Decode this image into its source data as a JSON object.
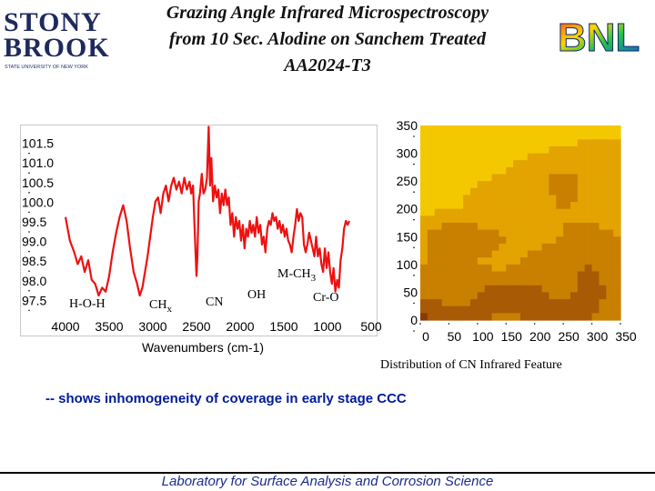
{
  "logo_left": {
    "line1": "STONY",
    "line2": "BROOK",
    "subtitle": "STATE UNIVERSITY OF NEW YORK"
  },
  "logo_right": {
    "text": "BNL"
  },
  "title": {
    "line1": "Grazing Angle Infrared Microspectroscopy",
    "line2": "from 10 Sec. Alodine on Sanchem Treated",
    "line3": "AA2024-T3"
  },
  "chart_data": [
    {
      "type": "line",
      "title": "",
      "xlabel": "Wavenumbers (cm-1)",
      "ylabel": "",
      "xlim": [
        4000,
        500
      ],
      "ylim": [
        97.3,
        101.7
      ],
      "xticks": [
        "4000",
        "3500",
        "3000",
        "2500",
        "2000",
        "1500",
        "1000",
        "500"
      ],
      "yticks": [
        "101.5",
        "101.0",
        "100.5",
        "100.0",
        "99.5",
        "99.0",
        "98.5",
        "98.0",
        "97.5"
      ],
      "grid": false,
      "series": [
        {
          "color": "#ee1111",
          "points": [
            [
              4000,
              99.6
            ],
            [
              3950,
              99.0
            ],
            [
              3900,
              98.7
            ],
            [
              3860,
              98.4
            ],
            [
              3820,
              98.6
            ],
            [
              3780,
              98.2
            ],
            [
              3740,
              98.5
            ],
            [
              3700,
              98.0
            ],
            [
              3660,
              97.9
            ],
            [
              3620,
              97.6
            ],
            [
              3580,
              97.8
            ],
            [
              3540,
              97.7
            ],
            [
              3500,
              98.1
            ],
            [
              3460,
              98.7
            ],
            [
              3420,
              99.2
            ],
            [
              3380,
              99.6
            ],
            [
              3340,
              99.9
            ],
            [
              3300,
              99.5
            ],
            [
              3260,
              98.8
            ],
            [
              3220,
              98.2
            ],
            [
              3180,
              97.9
            ],
            [
              3150,
              97.6
            ],
            [
              3120,
              97.8
            ],
            [
              3090,
              98.2
            ],
            [
              3060,
              98.6
            ],
            [
              3030,
              99.1
            ],
            [
              3000,
              99.6
            ],
            [
              2970,
              100.0
            ],
            [
              2940,
              100.1
            ],
            [
              2910,
              99.7
            ],
            [
              2880,
              100.2
            ],
            [
              2850,
              100.4
            ],
            [
              2820,
              100.0
            ],
            [
              2790,
              100.4
            ],
            [
              2760,
              100.6
            ],
            [
              2730,
              100.3
            ],
            [
              2700,
              100.5
            ],
            [
              2670,
              100.2
            ],
            [
              2640,
              100.6
            ],
            [
              2610,
              100.3
            ],
            [
              2580,
              100.5
            ],
            [
              2560,
              100.2
            ],
            [
              2540,
              100.4
            ],
            [
              2520,
              99.2
            ],
            [
              2500,
              98.1
            ],
            [
              2490,
              98.6
            ],
            [
              2475,
              100.0
            ],
            [
              2460,
              100.2
            ],
            [
              2440,
              100.7
            ],
            [
              2420,
              100.2
            ],
            [
              2400,
              100.3
            ],
            [
              2380,
              100.6
            ],
            [
              2360,
              101.9
            ],
            [
              2345,
              100.4
            ],
            [
              2330,
              101.1
            ],
            [
              2310,
              100.0
            ],
            [
              2290,
              100.4
            ],
            [
              2270,
              100.1
            ],
            [
              2250,
              100.3
            ],
            [
              2230,
              99.7
            ],
            [
              2210,
              100.2
            ],
            [
              2190,
              99.9
            ],
            [
              2170,
              100.3
            ],
            [
              2150,
              99.9
            ],
            [
              2130,
              100.1
            ],
            [
              2110,
              99.4
            ],
            [
              2090,
              99.7
            ],
            [
              2070,
              99.1
            ],
            [
              2050,
              99.6
            ],
            [
              2030,
              99.3
            ],
            [
              2010,
              99.5
            ],
            [
              1990,
              99.0
            ],
            [
              1970,
              99.4
            ],
            [
              1950,
              98.8
            ],
            [
              1930,
              99.3
            ],
            [
              1910,
              99.1
            ],
            [
              1890,
              99.5
            ],
            [
              1870,
              99.2
            ],
            [
              1850,
              99.4
            ],
            [
              1830,
              99.1
            ],
            [
              1810,
              99.6
            ],
            [
              1790,
              99.2
            ],
            [
              1770,
              99.4
            ],
            [
              1750,
              98.9
            ],
            [
              1730,
              99.1
            ],
            [
              1710,
              98.7
            ],
            [
              1690,
              99.3
            ],
            [
              1670,
              99.5
            ],
            [
              1650,
              99.4
            ],
            [
              1630,
              99.7
            ],
            [
              1610,
              99.5
            ],
            [
              1590,
              99.6
            ],
            [
              1570,
              99.3
            ],
            [
              1550,
              99.5
            ],
            [
              1530,
              99.2
            ],
            [
              1510,
              99.4
            ],
            [
              1490,
              99.1
            ],
            [
              1470,
              99.3
            ],
            [
              1450,
              99.0
            ],
            [
              1430,
              98.9
            ],
            [
              1410,
              98.7
            ],
            [
              1390,
              99.1
            ],
            [
              1370,
              99.4
            ],
            [
              1350,
              99.8
            ],
            [
              1330,
              99.5
            ],
            [
              1310,
              99.7
            ],
            [
              1290,
              99.6
            ],
            [
              1270,
              98.9
            ],
            [
              1250,
              98.7
            ],
            [
              1230,
              98.9
            ],
            [
              1210,
              99.2
            ],
            [
              1190,
              99.0
            ],
            [
              1170,
              98.8
            ],
            [
              1150,
              98.6
            ],
            [
              1130,
              99.1
            ],
            [
              1110,
              98.6
            ],
            [
              1090,
              98.8
            ],
            [
              1070,
              98.4
            ],
            [
              1050,
              98.2
            ],
            [
              1030,
              98.8
            ],
            [
              1010,
              98.3
            ],
            [
              990,
              98.7
            ],
            [
              970,
              98.2
            ],
            [
              950,
              97.9
            ],
            [
              930,
              98.3
            ],
            [
              910,
              97.7
            ],
            [
              890,
              98.0
            ],
            [
              870,
              97.8
            ],
            [
              850,
              98.5
            ],
            [
              830,
              98.8
            ],
            [
              810,
              99.3
            ],
            [
              790,
              99.5
            ],
            [
              770,
              99.4
            ],
            [
              750,
              99.5
            ]
          ]
        }
      ],
      "annotations": [
        "H-O-H",
        "CHx",
        "CN",
        "OH",
        "M-CH3",
        "Cr-O"
      ]
    },
    {
      "type": "heatmap",
      "title": "",
      "xlabel": "",
      "ylabel": "",
      "xlim": [
        0,
        350
      ],
      "ylim": [
        0,
        350
      ],
      "xticks": [
        "0",
        "50",
        "100",
        "150",
        "200",
        "250",
        "300",
        "350"
      ],
      "yticks": [
        "350",
        "300",
        "250",
        "200",
        "150",
        "100",
        "50",
        "0"
      ],
      "grid_x": [
        0,
        50,
        100,
        150,
        200,
        250,
        300,
        350
      ],
      "grid_y": [
        0,
        50,
        100,
        150,
        200,
        250,
        300,
        350
      ],
      "values": [
        [
          0.1,
          0.12,
          0.15,
          0.18,
          0.22,
          0.25,
          0.28,
          0.3
        ],
        [
          0.12,
          0.15,
          0.2,
          0.24,
          0.3,
          0.32,
          0.32,
          0.3
        ],
        [
          0.18,
          0.22,
          0.3,
          0.32,
          0.45,
          0.6,
          0.42,
          0.32
        ],
        [
          0.25,
          0.28,
          0.35,
          0.38,
          0.42,
          0.5,
          0.45,
          0.4
        ],
        [
          0.45,
          0.7,
          0.6,
          0.5,
          0.45,
          0.5,
          0.55,
          0.5
        ],
        [
          0.5,
          0.52,
          0.48,
          0.45,
          0.55,
          0.65,
          0.7,
          0.55
        ],
        [
          0.65,
          0.55,
          0.7,
          0.8,
          0.75,
          0.65,
          0.78,
          0.62
        ],
        [
          0.95,
          0.85,
          0.75,
          0.65,
          0.72,
          0.8,
          0.68,
          0.62
        ]
      ],
      "colorscale": [
        "#ffee00",
        "#f4c800",
        "#e3a300",
        "#c97f00",
        "#a85a05",
        "#8a3a06"
      ]
    }
  ],
  "caption": "Distribution of CN Infrared Feature",
  "note": "-- shows inhomogeneity of coverage in early stage CCC",
  "footer": "Laboratory for Surface Analysis and Corrosion Science"
}
